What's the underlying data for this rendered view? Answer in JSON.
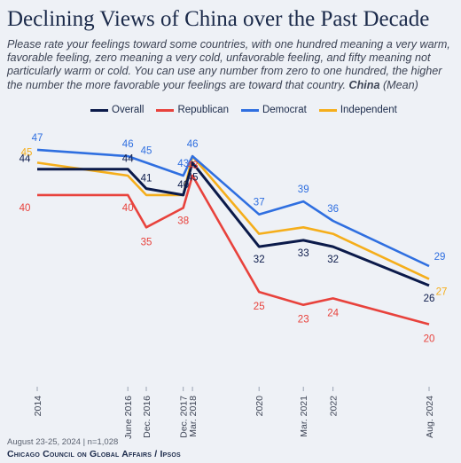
{
  "header": {
    "title": "Declining Views of China over the Past Decade",
    "subtitle": "Please rate your feelings toward some countries, with one hundred meaning a very warm, favorable feeling, zero meaning a very cold, unfavorable feeling, and fifty meaning not particularly warm or cold. You can use any number from zero to one hundred, the higher the number the more favorable your feelings are toward that country.",
    "subtitle_country": "China",
    "subtitle_suffix": "(Mean)"
  },
  "footer": {
    "date": "August 23-25, 2024 | n=1,028",
    "source": "Chicago Council on Global Affairs / Ipsos"
  },
  "chart_data": {
    "type": "line",
    "x": [
      "2014",
      "June 2016",
      "Dec. 2016",
      "Dec. 2017",
      "Mar. 2018",
      "2020",
      "Mar. 2021",
      "2022",
      "Aug. 2024"
    ],
    "series": [
      {
        "name": "Overall",
        "color": "#0b1a4a",
        "values": [
          44,
          44,
          41,
          40,
          45,
          32,
          33,
          32,
          26
        ]
      },
      {
        "name": "Republican",
        "color": "#e8423c",
        "values": [
          40,
          40,
          35,
          38,
          43,
          25,
          23,
          24,
          20
        ]
      },
      {
        "name": "Democrat",
        "color": "#2f6fe0",
        "values": [
          47,
          46,
          45,
          43,
          46,
          37,
          39,
          36,
          29
        ]
      },
      {
        "name": "Independent",
        "color": "#f5ae1b",
        "values": [
          45,
          43,
          40,
          40,
          46,
          34,
          35,
          34,
          27
        ]
      }
    ],
    "labels": [
      [
        "44",
        "44",
        "41",
        "40",
        "45",
        "32",
        "33",
        "32",
        "26"
      ],
      [
        "40",
        "40",
        "35",
        "38",
        "43",
        "25",
        "23",
        "24",
        "20"
      ],
      [
        "47",
        "46",
        "45",
        "43",
        "46",
        "37",
        "39",
        "36",
        "29"
      ],
      [
        "45",
        "",
        "",
        "",
        "",
        "",
        "",
        "",
        "27"
      ]
    ],
    "title": "Declining Views of China over the Past Decade",
    "xlabel": "",
    "ylabel": "",
    "ylim": [
      15,
      50
    ],
    "grid": false,
    "legend_position": "top"
  }
}
